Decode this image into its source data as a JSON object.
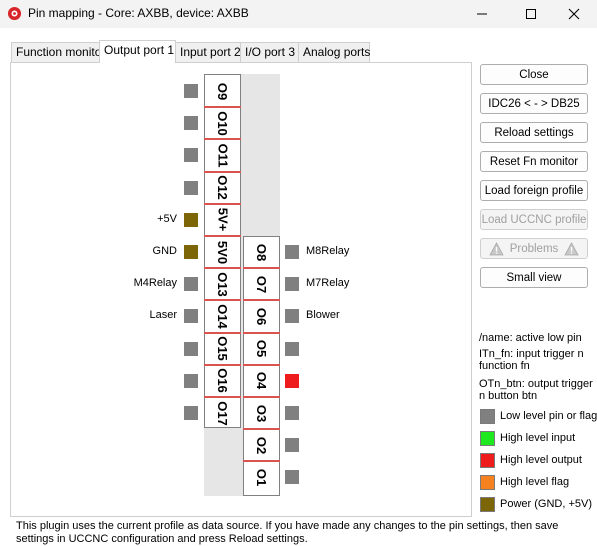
{
  "window": {
    "title": "Pin mapping - Core: AXBB, device: AXBB",
    "icon": "uccnc-app-icon",
    "controls": [
      "minimize-icon",
      "maximize-icon",
      "close-icon"
    ]
  },
  "tabs": [
    {
      "label": "Function monitor",
      "active": false
    },
    {
      "label": "Output port 1",
      "active": true
    },
    {
      "label": "Input port 2",
      "active": false
    },
    {
      "label": "I/O port 3",
      "active": false
    },
    {
      "label": "Analog ports",
      "active": false
    }
  ],
  "connector": {
    "left_column": [
      {
        "label": "O9",
        "signal": "",
        "state": "low"
      },
      {
        "label": "O10",
        "signal": "",
        "state": "low"
      },
      {
        "label": "O11",
        "signal": "",
        "state": "low"
      },
      {
        "label": "O12",
        "signal": "",
        "state": "low"
      },
      {
        "label": "5V+",
        "signal": "+5V",
        "state": "power"
      },
      {
        "label": "5V0",
        "signal": "GND",
        "state": "power"
      },
      {
        "label": "O13",
        "signal": "M4Relay",
        "state": "low"
      },
      {
        "label": "O14",
        "signal": "Laser",
        "state": "low"
      },
      {
        "label": "O15",
        "signal": "",
        "state": "low"
      },
      {
        "label": "O16",
        "signal": "",
        "state": "low"
      },
      {
        "label": "O17",
        "signal": "",
        "state": "low"
      }
    ],
    "right_column": [
      {
        "label": "O8",
        "signal": "M8Relay",
        "state": "low"
      },
      {
        "label": "O7",
        "signal": "M7Relay",
        "state": "low"
      },
      {
        "label": "O6",
        "signal": "Blower",
        "state": "low"
      },
      {
        "label": "O5",
        "signal": "",
        "state": "low"
      },
      {
        "label": "O4",
        "signal": "",
        "state": "high_output"
      },
      {
        "label": "O3",
        "signal": "",
        "state": "low"
      },
      {
        "label": "O2",
        "signal": "",
        "state": "low"
      },
      {
        "label": "O1",
        "signal": "",
        "state": "low"
      }
    ]
  },
  "buttons": {
    "close": "Close",
    "idc": "IDC26 < - > DB25",
    "reload": "Reload settings",
    "reset": "Reset Fn monitor",
    "load_foreign": "Load foreign profile",
    "load_uccnc": "Load UCCNC profile",
    "problems": "Problems",
    "small_view": "Small view"
  },
  "legend": {
    "notes": [
      "/name: active low pin",
      "ITn_fn: input trigger n function fn",
      "OTn_btn: output trigger n button btn"
    ],
    "items": [
      {
        "label": "Low level pin or flag",
        "color": "#808080"
      },
      {
        "label": "High level input",
        "color": "#1ee81e"
      },
      {
        "label": "High level output",
        "color": "#ee1c1c"
      },
      {
        "label": "High level flag",
        "color": "#f5821f"
      },
      {
        "label": "Power (GND, +5V)",
        "color": "#7d6608"
      }
    ]
  },
  "colors": {
    "low": "#808080",
    "power": "#7d6608",
    "high_output": "#ee1c1c",
    "separator": "#d9534f",
    "connector": "#e6e6e6"
  },
  "footer": "This plugin uses the current profile as data source. If you have made any changes to the pin settings, then save settings in UCCNC configuration and press Reload settings."
}
